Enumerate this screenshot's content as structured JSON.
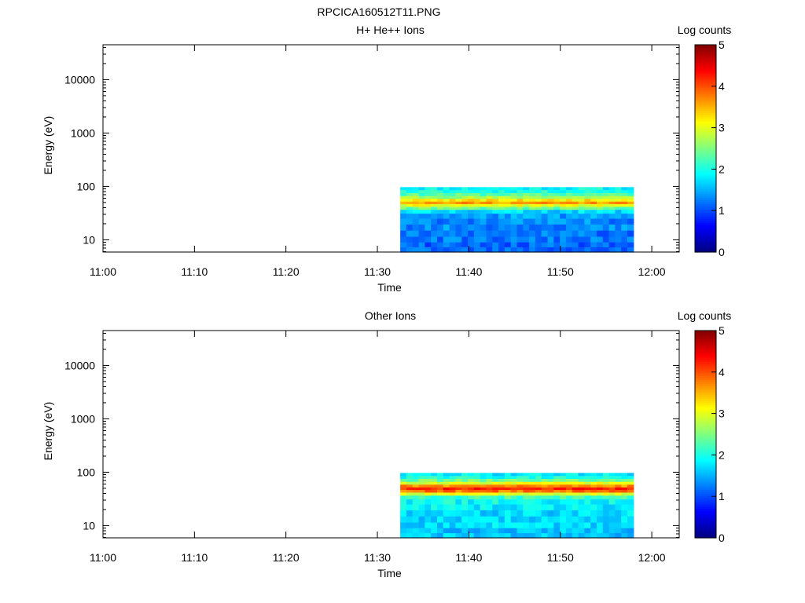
{
  "figure_title": "RPCICA160512T11.PNG",
  "chart_data": [
    {
      "type": "heatmap",
      "title": "H+ He++ Ions",
      "xlabel": "Time",
      "ylabel": "Energy (eV)",
      "yscale": "log",
      "xlim": [
        "11:00",
        "12:03"
      ],
      "ylim": [
        5.9,
        45000
      ],
      "x_ticks": [
        "11:00",
        "11:10",
        "11:20",
        "11:30",
        "11:40",
        "11:50",
        "12:00"
      ],
      "y_ticks": [
        10,
        100,
        1000,
        10000
      ],
      "y_tick_labels": [
        "10",
        "100",
        "1000",
        "10000"
      ],
      "colorbar": {
        "label": "Log counts",
        "range": [
          0,
          5
        ],
        "ticks": [
          "0",
          "1",
          "2",
          "3",
          "4",
          "5"
        ],
        "colormap": "jet"
      },
      "data_time_range": [
        "11:32.5",
        "11:58"
      ],
      "data_energy_range": [
        5.9,
        97
      ],
      "energy_profile": [
        {
          "energy": 90,
          "log_counts": 1.9
        },
        {
          "energy": 80,
          "log_counts": 2.0
        },
        {
          "energy": 70,
          "log_counts": 2.3
        },
        {
          "energy": 62,
          "log_counts": 2.7
        },
        {
          "energy": 55,
          "log_counts": 3.2
        },
        {
          "energy": 49,
          "log_counts": 3.6
        },
        {
          "energy": 44,
          "log_counts": 3.0
        },
        {
          "energy": 39,
          "log_counts": 2.4
        },
        {
          "energy": 34,
          "log_counts": 1.7
        },
        {
          "energy": 28,
          "log_counts": 1.4
        },
        {
          "energy": 22,
          "log_counts": 1.3
        },
        {
          "energy": 17,
          "log_counts": 1.3
        },
        {
          "energy": 13,
          "log_counts": 1.2
        },
        {
          "energy": 10,
          "log_counts": 1.2
        },
        {
          "energy": 8,
          "log_counts": 1.1
        },
        {
          "energy": 6.5,
          "log_counts": 1.1
        }
      ]
    },
    {
      "type": "heatmap",
      "title": "Other Ions",
      "xlabel": "Time",
      "ylabel": "Energy (eV)",
      "yscale": "log",
      "xlim": [
        "11:00",
        "12:03"
      ],
      "ylim": [
        5.9,
        45000
      ],
      "x_ticks": [
        "11:00",
        "11:10",
        "11:20",
        "11:30",
        "11:40",
        "11:50",
        "12:00"
      ],
      "y_ticks": [
        10,
        100,
        1000,
        10000
      ],
      "y_tick_labels": [
        "10",
        "100",
        "1000",
        "10000"
      ],
      "colorbar": {
        "label": "Log counts",
        "range": [
          0,
          5
        ],
        "ticks": [
          "0",
          "1",
          "2",
          "3",
          "4",
          "5"
        ],
        "colormap": "jet"
      },
      "data_time_range": [
        "11:32.5",
        "11:58"
      ],
      "data_energy_range": [
        5.9,
        97
      ],
      "energy_profile": [
        {
          "energy": 90,
          "log_counts": 1.8
        },
        {
          "energy": 80,
          "log_counts": 2.0
        },
        {
          "energy": 70,
          "log_counts": 2.4
        },
        {
          "energy": 62,
          "log_counts": 3.0
        },
        {
          "energy": 55,
          "log_counts": 3.7
        },
        {
          "energy": 49,
          "log_counts": 4.2
        },
        {
          "energy": 44,
          "log_counts": 3.8
        },
        {
          "energy": 39,
          "log_counts": 3.0
        },
        {
          "energy": 34,
          "log_counts": 2.2
        },
        {
          "energy": 28,
          "log_counts": 1.9
        },
        {
          "energy": 22,
          "log_counts": 1.8
        },
        {
          "energy": 17,
          "log_counts": 1.7
        },
        {
          "energy": 13,
          "log_counts": 1.7
        },
        {
          "energy": 10,
          "log_counts": 1.7
        },
        {
          "energy": 8,
          "log_counts": 1.6
        },
        {
          "energy": 6.5,
          "log_counts": 1.6
        }
      ]
    }
  ]
}
